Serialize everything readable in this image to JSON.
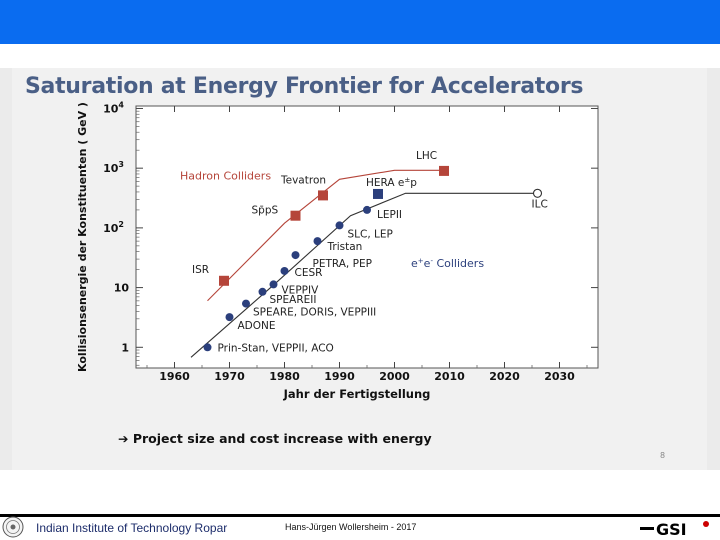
{
  "slide": {
    "title": "Saturation at Energy Frontier for Accelerators",
    "bullet_arrow": "➔",
    "bullet_text": "Project size and cost increase with energy",
    "slide_number": "8"
  },
  "footer": {
    "institute": "Indian Institute of Technology Ropar",
    "author": "Hans-Jürgen Wollersheim - 2017",
    "logo_right_text": "GSI"
  },
  "colors": {
    "topbar": "#0a6cf0",
    "hadron": "#b5453a",
    "lepton": "#2b3f7c",
    "title": "#4a5f86"
  },
  "chart_data": {
    "type": "scatter",
    "xlabel": "Jahr der Fertigstellung",
    "ylabel": "Kollisionsenergie der Konstituenten  ( GeV )",
    "xlim": [
      1953,
      2037
    ],
    "ylim": [
      0.45,
      11000
    ],
    "y_scale": "log",
    "x_ticks": [
      "1960",
      "1970",
      "1980",
      "1990",
      "2000",
      "2010",
      "2020",
      "2030"
    ],
    "y_ticks": [
      {
        "value": 1,
        "label": "1",
        "sup": ""
      },
      {
        "value": 10,
        "label": "10",
        "sup": ""
      },
      {
        "value": 100,
        "label": "10",
        "sup": "2"
      },
      {
        "value": 1000,
        "label": "10",
        "sup": "3"
      },
      {
        "value": 10000,
        "label": "10",
        "sup": "4"
      }
    ],
    "series": [
      {
        "name": "Hadron Colliders",
        "marker": "square",
        "points": [
          {
            "x": 1969,
            "y": 13,
            "label": "ISR"
          },
          {
            "x": 1982,
            "y": 160,
            "label": "SppS"
          },
          {
            "x": 1987,
            "y": 350,
            "label": "Tevatron"
          },
          {
            "x": 2009,
            "y": 900,
            "label": "LHC"
          }
        ],
        "trend": [
          [
            1966,
            6
          ],
          [
            1980,
            120
          ],
          [
            1990,
            650
          ],
          [
            2000,
            920
          ],
          [
            2009,
            920
          ]
        ]
      },
      {
        "name": "e+e- Colliders",
        "marker": "circle",
        "points": [
          {
            "x": 1966,
            "y": 1.0,
            "label": "Prin-Stan, VEPPII, ACO"
          },
          {
            "x": 1970,
            "y": 3.2,
            "label": "ADONE"
          },
          {
            "x": 1973,
            "y": 5.4,
            "label": "SPEARE, DORIS, VEPPIII"
          },
          {
            "x": 1976,
            "y": 8.5,
            "label": "SPEAREII"
          },
          {
            "x": 1978,
            "y": 11.3,
            "label": "VEPPIV"
          },
          {
            "x": 1980,
            "y": 19,
            "label": "CESR"
          },
          {
            "x": 1982,
            "y": 35,
            "label": "PETRA, PEP"
          },
          {
            "x": 1986,
            "y": 60,
            "label": "Tristan"
          },
          {
            "x": 1990,
            "y": 110,
            "label": "SLC, LEP"
          },
          {
            "x": 1995,
            "y": 200,
            "label": "LEPII"
          }
        ],
        "trend": [
          [
            1963,
            0.68
          ],
          [
            1978,
            11
          ],
          [
            1992,
            160
          ],
          [
            2002,
            380
          ],
          [
            2026,
            380
          ]
        ]
      },
      {
        "name": "HERA e+p",
        "marker": "square",
        "points": [
          {
            "x": 1997,
            "y": 370,
            "label": "HERA e+p"
          }
        ]
      },
      {
        "name": "ILC",
        "marker": "open-circle",
        "points": [
          {
            "x": 2026,
            "y": 380,
            "label": "ILC"
          }
        ]
      }
    ],
    "annotations": [
      {
        "text": "Hadron Colliders",
        "x": 1961,
        "y": 650,
        "color": "hadron"
      },
      {
        "text": "e+e- Colliders",
        "x": 2003,
        "y": 22,
        "color": "lepton"
      }
    ],
    "grid": false
  }
}
